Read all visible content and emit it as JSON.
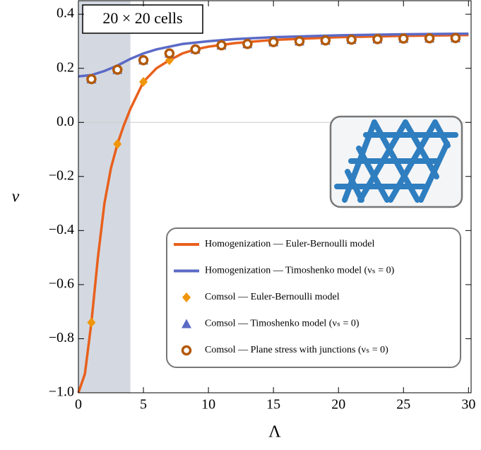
{
  "chart_data": {
    "type": "line",
    "title": "20 × 20 cells",
    "x_label": "Λ",
    "y_label": "ν",
    "xlim": [
      0,
      30.2
    ],
    "ylim": [
      -1.0,
      0.45
    ],
    "xticks": [
      0,
      5,
      10,
      15,
      20,
      25,
      30
    ],
    "yticks": [
      {
        "value": -1.0,
        "label": "−1.0"
      },
      {
        "value": -0.8,
        "label": "−0.8"
      },
      {
        "value": -0.6,
        "label": "−0.6"
      },
      {
        "value": -0.4,
        "label": "−0.4"
      },
      {
        "value": -0.2,
        "label": "−0.2"
      },
      {
        "value": 0.0,
        "label": "0.0"
      },
      0.2,
      0.4
    ],
    "shaded_region": [
      0,
      4
    ],
    "reference_line": 0,
    "series": [
      {
        "name": "Homogenization — Euler-Bernoulli model",
        "color": "#e8601c",
        "marker": "line",
        "x": [
          0,
          0.5,
          1,
          1.5,
          2,
          2.5,
          3,
          3.5,
          4,
          5,
          6,
          7,
          8,
          9,
          10,
          12,
          15,
          20,
          25,
          30
        ],
        "values": [
          -1.0,
          -0.93,
          -0.74,
          -0.5,
          -0.3,
          -0.17,
          -0.08,
          -0.01,
          0.05,
          0.15,
          0.2,
          0.23,
          0.255,
          0.27,
          0.28,
          0.293,
          0.305,
          0.315,
          0.32,
          0.323
        ]
      },
      {
        "name": "Homogenization — Timoshenko model (νₛ = 0)",
        "color": "#5b6ac6",
        "marker": "line",
        "x": [
          0,
          1,
          2,
          3,
          4,
          5,
          6,
          7,
          8,
          10,
          12,
          15,
          20,
          25,
          30
        ],
        "values": [
          0.17,
          0.175,
          0.19,
          0.21,
          0.235,
          0.255,
          0.27,
          0.28,
          0.29,
          0.3,
          0.308,
          0.315,
          0.322,
          0.326,
          0.328
        ]
      },
      {
        "name": "Comsol — Euler-Bernoulli model",
        "color": "#f0960a",
        "marker": "diamond",
        "x": [
          1,
          3,
          5,
          7,
          9,
          11,
          13,
          15,
          17,
          19,
          21,
          23,
          25,
          27,
          29
        ],
        "values": [
          -0.74,
          -0.08,
          0.15,
          0.23,
          0.27,
          0.285,
          0.29,
          0.3,
          0.3,
          0.305,
          0.305,
          0.31,
          0.31,
          0.31,
          0.31
        ]
      },
      {
        "name": "Comsol — Timoshenko model (νₛ = 0)",
        "color": "#5b6ac6",
        "marker": "triangle",
        "x": [
          1,
          3,
          5,
          7,
          9,
          11,
          13,
          15,
          17,
          19,
          21,
          23,
          25,
          27,
          29
        ],
        "values": [
          0.16,
          0.195,
          0.23,
          0.255,
          0.27,
          0.285,
          0.29,
          0.297,
          0.3,
          0.303,
          0.306,
          0.308,
          0.31,
          0.311,
          0.312
        ]
      },
      {
        "name": "Comsol — Plane stress with junctions (νₛ = 0)",
        "color": "#b35a0a",
        "marker": "circle",
        "x": [
          1,
          3,
          5,
          7,
          9,
          11,
          13,
          15,
          17,
          19,
          21,
          23,
          25,
          27,
          29
        ],
        "values": [
          0.16,
          0.195,
          0.23,
          0.255,
          0.27,
          0.285,
          0.29,
          0.297,
          0.3,
          0.303,
          0.306,
          0.308,
          0.31,
          0.311,
          0.312
        ]
      }
    ]
  }
}
